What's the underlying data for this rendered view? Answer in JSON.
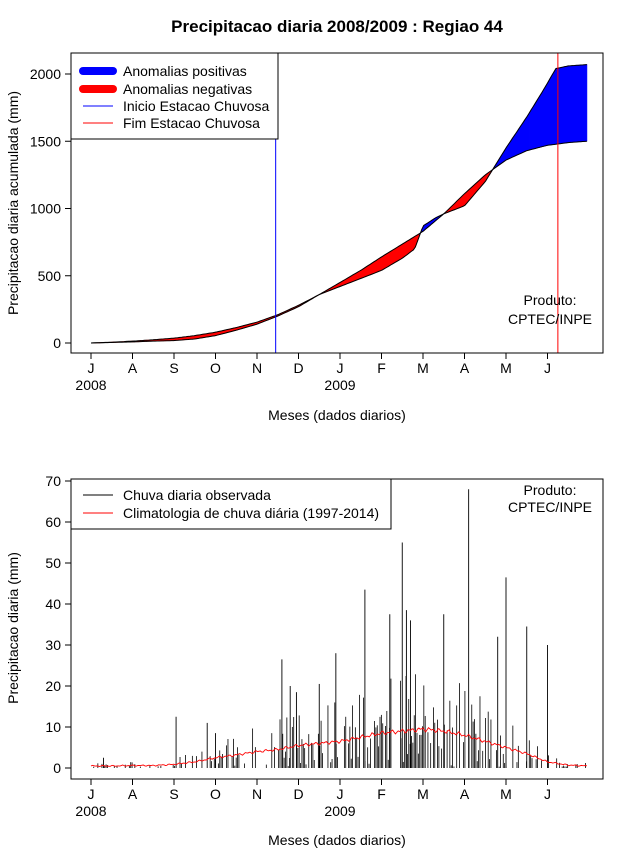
{
  "chart_data": [
    {
      "type": "area",
      "title": "Precipitacao diaria 2008/2009 : Regiao 44",
      "xlabel": "Meses (dados diarios)",
      "ylabel": "Precipitacao diaria acumulada (mm)",
      "ylim": [
        0,
        2100
      ],
      "yticks": [
        0,
        500,
        1000,
        1500,
        2000
      ],
      "month_ticks": [
        "J",
        "A",
        "S",
        "O",
        "N",
        "D",
        "J",
        "F",
        "M",
        "A",
        "M",
        "J"
      ],
      "year_labels": [
        {
          "label": "2008",
          "month_index": 0
        },
        {
          "label": "2009",
          "month_index": 6
        }
      ],
      "legend": {
        "placement": "top-left",
        "entries": [
          {
            "label": "Anomalias positivas",
            "color": "#0000ff",
            "style": "thick"
          },
          {
            "label": "Anomalias negativas",
            "color": "#ff0000",
            "style": "thick"
          },
          {
            "label": "Inicio Estacao Chuvosa",
            "color": "#0000ff",
            "style": "line"
          },
          {
            "label": "Fim Estacao Chuvosa",
            "color": "#ff0000",
            "style": "line"
          }
        ]
      },
      "annotation": [
        "Produto:",
        "CPTEC/INPE"
      ],
      "rainy_season_start_month_pos": 4.45,
      "rainy_season_end_month_pos": 11.25,
      "series": [
        {
          "name": "observed_cumulative",
          "month_pos": [
            0,
            0.5,
            1,
            1.5,
            2,
            2.5,
            3,
            3.5,
            4,
            4.5,
            5,
            5.5,
            6,
            6.5,
            7,
            7.5,
            7.8,
            8,
            8.3,
            8.5,
            9,
            9.5,
            10,
            10.5,
            10.9,
            11.2,
            11.5,
            11.95
          ],
          "values": [
            0,
            4,
            8,
            14,
            18,
            30,
            55,
            95,
            140,
            200,
            270,
            360,
            420,
            480,
            540,
            630,
            700,
            870,
            930,
            960,
            1020,
            1200,
            1450,
            1680,
            1880,
            2040,
            2060,
            2070
          ]
        },
        {
          "name": "climatology_cumulative",
          "month_pos": [
            0,
            0.5,
            1,
            1.5,
            2,
            2.5,
            3,
            3.5,
            4,
            4.5,
            5,
            5.5,
            6,
            6.5,
            7,
            7.5,
            8,
            8.5,
            9,
            9.5,
            10,
            10.5,
            11,
            11.5,
            11.95
          ],
          "values": [
            0,
            6,
            14,
            24,
            36,
            55,
            80,
            115,
            155,
            210,
            280,
            360,
            450,
            540,
            640,
            735,
            830,
            960,
            1110,
            1250,
            1360,
            1430,
            1470,
            1490,
            1500
          ]
        }
      ]
    },
    {
      "type": "bar",
      "xlabel": "Meses (dados diarios)",
      "ylabel": "Precipitacao diaria (mm)",
      "ylim": [
        0,
        70
      ],
      "yticks": [
        0,
        10,
        20,
        30,
        40,
        50,
        60,
        70
      ],
      "month_ticks": [
        "J",
        "A",
        "S",
        "O",
        "N",
        "D",
        "J",
        "F",
        "M",
        "A",
        "M",
        "J"
      ],
      "year_labels": [
        {
          "label": "2008",
          "month_index": 0
        },
        {
          "label": "2009",
          "month_index": 6
        }
      ],
      "legend": {
        "placement": "top-left",
        "entries": [
          {
            "label": "Chuva diaria observada",
            "color": "#000000",
            "style": "line"
          },
          {
            "label": "Climatologia de chuva diária (1997-2014)",
            "color": "#ff0000",
            "style": "line"
          }
        ]
      },
      "annotation": [
        "Produto:",
        "CPTEC/INPE"
      ],
      "bars_note_peaks": [
        {
          "month_pos": 0.3,
          "value": 2.5
        },
        {
          "month_pos": 2.05,
          "value": 12.5
        },
        {
          "month_pos": 2.8,
          "value": 11
        },
        {
          "month_pos": 3.0,
          "value": 8.5
        },
        {
          "month_pos": 4.6,
          "value": 26.5
        },
        {
          "month_pos": 4.8,
          "value": 20
        },
        {
          "month_pos": 4.95,
          "value": 18.5
        },
        {
          "month_pos": 5.5,
          "value": 20.5
        },
        {
          "month_pos": 5.9,
          "value": 28
        },
        {
          "month_pos": 6.6,
          "value": 43.5
        },
        {
          "month_pos": 7.2,
          "value": 37.5
        },
        {
          "month_pos": 7.5,
          "value": 55
        },
        {
          "month_pos": 7.6,
          "value": 38.5
        },
        {
          "month_pos": 7.7,
          "value": 36
        },
        {
          "month_pos": 8.5,
          "value": 37.5
        },
        {
          "month_pos": 9.1,
          "value": 68
        },
        {
          "month_pos": 9.8,
          "value": 32
        },
        {
          "month_pos": 10.0,
          "value": 46.5
        },
        {
          "month_pos": 10.5,
          "value": 34.5
        },
        {
          "month_pos": 11.0,
          "value": 30
        }
      ],
      "climatology": {
        "month_pos": [
          0,
          0.5,
          1,
          1.5,
          2,
          2.5,
          3,
          3.5,
          4,
          4.5,
          5,
          5.5,
          6,
          6.5,
          7,
          7.5,
          8,
          8.5,
          9,
          9.5,
          10,
          10.5,
          11,
          11.5,
          11.95
        ],
        "values": [
          0.5,
          0.5,
          0.6,
          0.6,
          0.9,
          1.5,
          2.5,
          3.2,
          4.0,
          4.5,
          5.5,
          6.0,
          6.5,
          7.5,
          8.5,
          9.0,
          9.5,
          9.0,
          8.0,
          6.5,
          5.0,
          3.5,
          1.5,
          0.7,
          0.5
        ]
      }
    }
  ]
}
